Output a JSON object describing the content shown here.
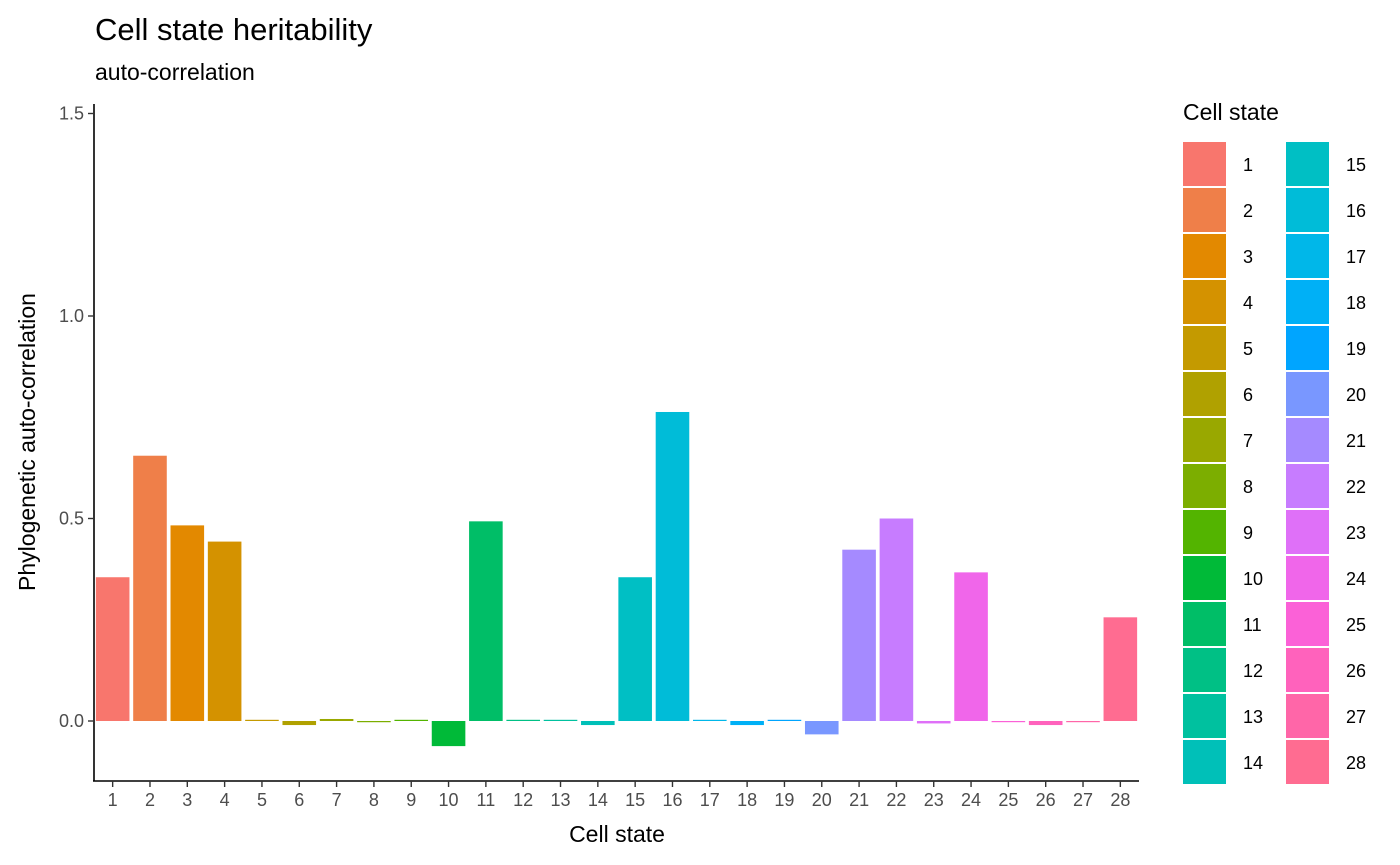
{
  "chart_data": {
    "type": "bar",
    "title": "Cell state heritability",
    "subtitle": "auto-correlation",
    "xlabel": "Cell state",
    "ylabel": "Phylogenetic auto-correlation",
    "ylim": [
      -0.14,
      1.52
    ],
    "yticks": [
      0.0,
      0.5,
      1.0,
      1.5
    ],
    "ytick_labels": [
      "0.0",
      "0.5",
      "1.0",
      "1.5"
    ],
    "grid": false,
    "legend": {
      "title": "Cell state",
      "position": "right",
      "columns": 2
    },
    "categories": [
      "1",
      "2",
      "3",
      "4",
      "5",
      "6",
      "7",
      "8",
      "9",
      "10",
      "11",
      "12",
      "13",
      "14",
      "15",
      "16",
      "17",
      "18",
      "19",
      "20",
      "21",
      "22",
      "23",
      "24",
      "25",
      "26",
      "27",
      "28"
    ],
    "values": [
      0.355,
      0.655,
      0.483,
      0.443,
      0.002,
      -0.01,
      0.005,
      -0.003,
      0.0,
      -0.062,
      0.493,
      0.002,
      0.002,
      -0.01,
      0.355,
      0.763,
      0.002,
      -0.01,
      0.002,
      -0.033,
      0.423,
      0.5,
      -0.006,
      0.367,
      -0.002,
      -0.01,
      -0.002,
      0.256
    ],
    "colors": [
      "#F8766D",
      "#EF7F49",
      "#E38900",
      "#D49200",
      "#C49A00",
      "#B0A100",
      "#99A800",
      "#7CAE00",
      "#53B400",
      "#00BA38",
      "#00BE67",
      "#00C085",
      "#00C19F",
      "#00C0B8",
      "#00BFC4",
      "#00BCD8",
      "#00B7E9",
      "#00B0F6",
      "#00A5FF",
      "#7997FF",
      "#A58AFF",
      "#C77CFF",
      "#DF70F8",
      "#F066EA",
      "#FB61D7",
      "#FF62BC",
      "#FF66A8",
      "#FF6C91"
    ]
  }
}
